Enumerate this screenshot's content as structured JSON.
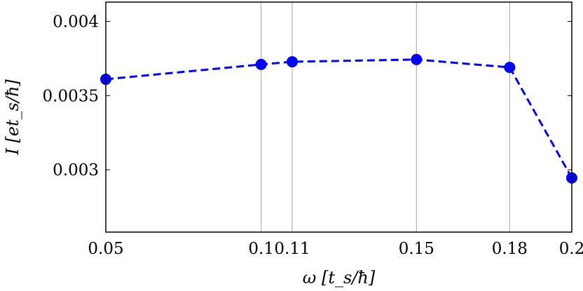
{
  "chart_data": {
    "type": "line",
    "title": "",
    "xlabel": "ω [t_s/ħ]",
    "ylabel": "I [et_s/ħ]",
    "xlim": [
      0.05,
      0.2
    ],
    "ylim": [
      0.00258,
      0.00413
    ],
    "x_ticks": [
      0.05,
      0.1,
      0.11,
      0.15,
      0.18,
      0.2
    ],
    "x_tick_labels": [
      "0.05",
      "0.1",
      "0.11",
      "0.15",
      "0.18",
      "0.2"
    ],
    "y_ticks": [
      0.003,
      0.0035,
      0.004
    ],
    "y_tick_labels": [
      "0.003",
      "0.0035",
      "0.004"
    ],
    "grid": "vertical lines at x ticks",
    "series": [
      {
        "color": "#0000ff",
        "line_style": "dashed",
        "marker": "circle",
        "x": [
          0.05,
          0.1,
          0.11,
          0.15,
          0.18,
          0.2
        ],
        "y": [
          0.00361,
          0.00371,
          0.003728,
          0.003743,
          0.00369,
          0.002945
        ]
      }
    ]
  }
}
